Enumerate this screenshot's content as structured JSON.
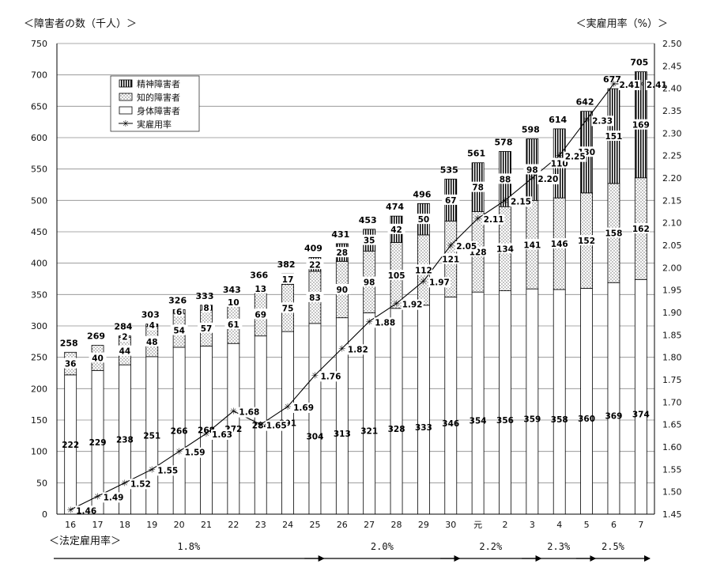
{
  "chart_data": {
    "type": "bar",
    "stacked": true,
    "title": "",
    "ylabel_left": "＜障害者の数（千人）＞",
    "ylabel_right": "＜実雇用率（%）＞",
    "ylim_left": [
      0,
      750
    ],
    "yticks_left": [
      0,
      50,
      100,
      150,
      200,
      250,
      300,
      350,
      400,
      450,
      500,
      550,
      600,
      650,
      700,
      750
    ],
    "ylim_right": [
      1.45,
      2.5
    ],
    "yticks_right": [
      "1.45",
      "1.50",
      "1.55",
      "1.60",
      "1.65",
      "1.70",
      "1.75",
      "1.80",
      "1.85",
      "1.90",
      "1.95",
      "2.00",
      "2.05",
      "2.10",
      "2.15",
      "2.20",
      "2.25",
      "2.30",
      "2.35",
      "2.40",
      "2.45",
      "2.50"
    ],
    "grid": true,
    "legend_position": "top-left",
    "categories": [
      "16",
      "17",
      "18",
      "19",
      "20",
      "21",
      "22",
      "23",
      "24",
      "25",
      "26",
      "27",
      "28",
      "29",
      "30",
      "元",
      "2",
      "3",
      "4",
      "5",
      "6",
      "7"
    ],
    "series": [
      {
        "name": "身体障害者",
        "pattern": "white",
        "values": [
          222,
          229,
          238,
          251,
          266,
          268,
          272,
          284,
          291,
          304,
          313,
          321,
          328,
          333,
          346,
          354,
          356,
          359,
          358,
          360,
          369,
          374
        ]
      },
      {
        "name": "知的障害者",
        "pattern": "dots",
        "values": [
          36,
          40,
          44,
          48,
          54,
          57,
          61,
          69,
          75,
          83,
          90,
          98,
          105,
          112,
          121,
          128,
          134,
          141,
          146,
          152,
          158,
          162
        ]
      },
      {
        "name": "精神障害者",
        "pattern": "vertical-stripes",
        "values": [
          null,
          null,
          2,
          4,
          6,
          8,
          10,
          13,
          17,
          22,
          28,
          35,
          42,
          50,
          67,
          78,
          88,
          98,
          110,
          130,
          151,
          169
        ]
      },
      {
        "name": "実雇用率",
        "axis": "right",
        "type": "line",
        "values": [
          1.46,
          1.49,
          1.52,
          1.55,
          1.59,
          1.63,
          1.68,
          1.65,
          1.69,
          1.76,
          1.82,
          1.88,
          1.92,
          1.97,
          2.05,
          2.11,
          2.15,
          2.2,
          2.25,
          2.33,
          2.41,
          2.41
        ]
      }
    ],
    "totals": [
      258,
      269,
      284,
      303,
      326,
      333,
      343,
      366,
      382,
      409,
      431,
      453,
      474,
      496,
      535,
      561,
      578,
      598,
      614,
      642,
      677,
      705
    ],
    "legal_rate_label": "＜法定雇用率＞",
    "legal_rates": [
      "1.8%",
      "2.0%",
      "2.2%",
      "2.3%",
      "2.5%"
    ]
  }
}
